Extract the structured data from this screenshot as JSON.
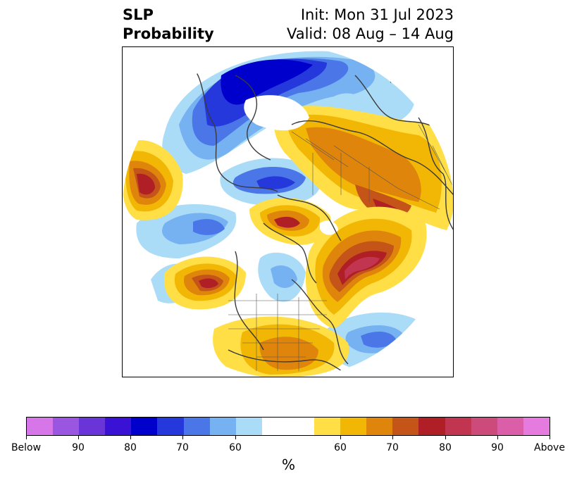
{
  "header": {
    "title_line1": "SLP",
    "title_line2": "Probability",
    "init": "Init: Mon 31 Jul 2023",
    "valid": "Valid: 08 Aug – 14 Aug"
  },
  "colorbar": {
    "unit": "%",
    "colors": [
      "#d676e8",
      "#9a56e0",
      "#6a35d8",
      "#3a12d6",
      "#0000cc",
      "#2438dc",
      "#4a76e8",
      "#76b1f2",
      "#aadcf8",
      "#ffffff",
      "#ffdf45",
      "#f2b705",
      "#df850c",
      "#c45418",
      "#b01f25",
      "#c23550",
      "#cc4b7a",
      "#da5fa8",
      "#e67bdf"
    ],
    "tick_labels": [
      "Below",
      "90",
      "80",
      "70",
      "60",
      "60",
      "70",
      "80",
      "90",
      "Above"
    ]
  },
  "map_colors": {
    "below_light": "#aadcf8",
    "below_mid": "#76b1f2",
    "below_strong": "#4a76e8",
    "below_deep": "#2438dc",
    "below_core": "#0000cc",
    "above_light": "#ffdf45",
    "above_mid": "#f2b705",
    "above_strong": "#df850c",
    "above_deep": "#c45418",
    "above_core": "#b01f25",
    "above_max": "#c23550",
    "coastline": "#3a3a3a"
  }
}
